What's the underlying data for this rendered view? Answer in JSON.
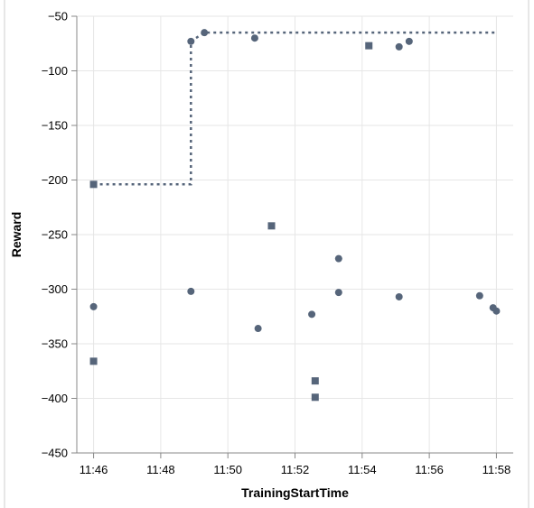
{
  "chart_data": {
    "type": "scatter",
    "xlabel": "TrainingStartTime",
    "ylabel": "Reward",
    "x_ticks": [
      "11:46",
      "11:48",
      "11:50",
      "11:52",
      "11:54",
      "11:56",
      "11:58"
    ],
    "xlim": [
      "11:45.5",
      "11:58.5"
    ],
    "ylim": [
      -450,
      -50
    ],
    "y_ticks": [
      -450,
      -400,
      -350,
      -300,
      -250,
      -200,
      -150,
      -100,
      -50
    ],
    "grid": true,
    "legend": "none",
    "colors": {
      "marks": "#56657a",
      "step_line": "#56657a",
      "grid": "#e6e6e6",
      "axis": "#888888"
    },
    "series": [
      {
        "marker": "circle",
        "points": [
          {
            "x": "11:46.0",
            "y": -316
          },
          {
            "x": "11:48.9",
            "y": -302
          },
          {
            "x": "11:48.9",
            "y": -73
          },
          {
            "x": "11:49.3",
            "y": -65
          },
          {
            "x": "11:50.8",
            "y": -70
          },
          {
            "x": "11:50.9",
            "y": -336
          },
          {
            "x": "11:52.5",
            "y": -323
          },
          {
            "x": "11:53.3",
            "y": -272
          },
          {
            "x": "11:53.3",
            "y": -303
          },
          {
            "x": "11:55.1",
            "y": -307
          },
          {
            "x": "11:55.1",
            "y": -78
          },
          {
            "x": "11:55.4",
            "y": -73
          },
          {
            "x": "11:57.5",
            "y": -306
          },
          {
            "x": "11:57.9",
            "y": -317
          },
          {
            "x": "11:58.0",
            "y": -320
          }
        ]
      },
      {
        "marker": "square",
        "points": [
          {
            "x": "11:46.0",
            "y": -204
          },
          {
            "x": "11:46.0",
            "y": -366
          },
          {
            "x": "11:51.3",
            "y": -242
          },
          {
            "x": "11:52.6",
            "y": -384
          },
          {
            "x": "11:52.6",
            "y": -399
          },
          {
            "x": "11:54.2",
            "y": -77
          }
        ]
      }
    ],
    "step_line": [
      {
        "x": "11:46.0",
        "y": -204
      },
      {
        "x": "11:48.9",
        "y": -204
      },
      {
        "x": "11:48.9",
        "y": -73
      },
      {
        "x": "11:49.3",
        "y": -65
      },
      {
        "x": "11:58.0",
        "y": -65
      }
    ]
  }
}
